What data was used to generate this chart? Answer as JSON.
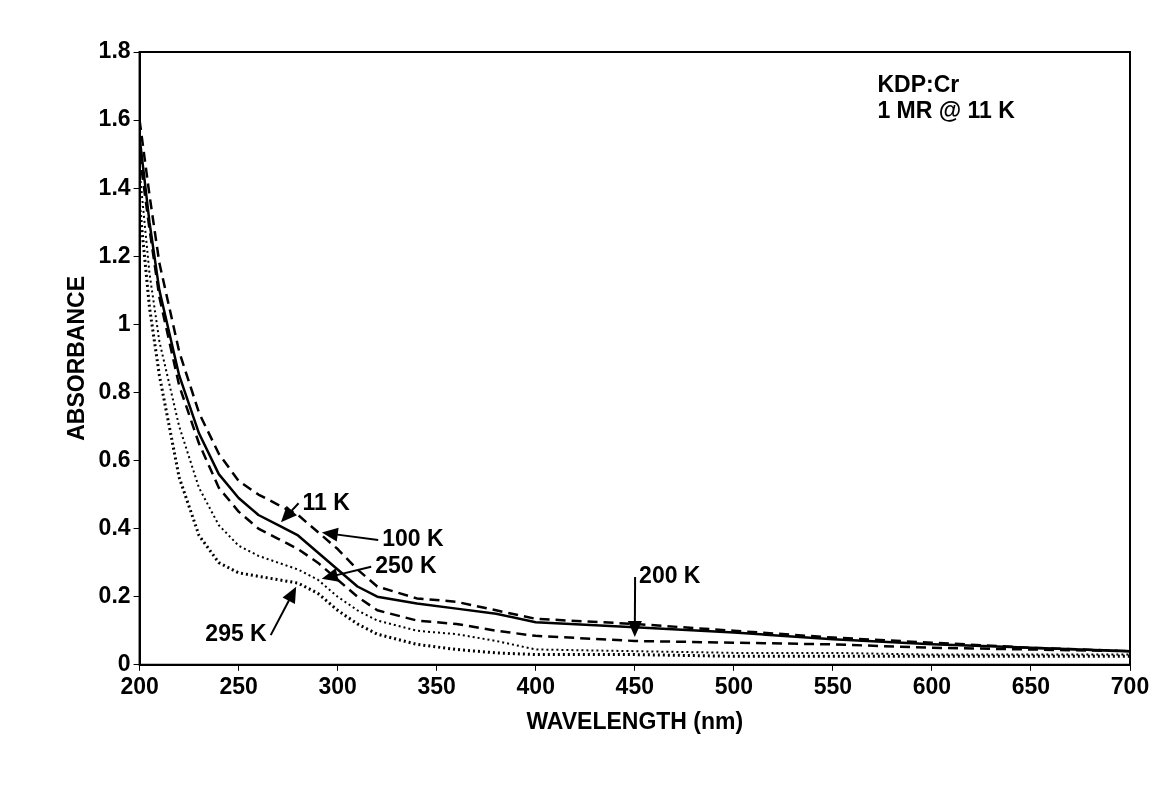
{
  "chart_data": {
    "type": "line",
    "xlabel": "WAVELENGTH (nm)",
    "ylabel": "ABSORBANCE",
    "x": [
      200,
      205,
      210,
      220,
      230,
      240,
      250,
      260,
      270,
      280,
      290,
      300,
      310,
      320,
      340,
      360,
      380,
      400,
      450,
      500,
      550,
      600,
      650,
      700
    ],
    "series": [
      {
        "color": "#000000",
        "line_style": "solid",
        "values": [
          1.55,
          1.3,
          1.1,
          0.85,
          0.68,
          0.56,
          0.49,
          0.44,
          0.41,
          0.38,
          0.33,
          0.28,
          0.23,
          0.2,
          0.18,
          0.165,
          0.15,
          0.125,
          0.11,
          0.095,
          0.075,
          0.06,
          0.05,
          0.04
        ]
      },
      {
        "color": "#000000",
        "line_style": "dashed",
        "values": [
          1.6,
          1.38,
          1.18,
          0.92,
          0.74,
          0.62,
          0.54,
          0.5,
          0.47,
          0.44,
          0.39,
          0.34,
          0.28,
          0.23,
          0.195,
          0.185,
          0.16,
          0.135,
          0.12,
          0.1,
          0.08,
          0.065,
          0.05,
          0.04
        ]
      },
      {
        "color": "#000000",
        "line_style": "dashed",
        "values": [
          1.5,
          1.28,
          1.08,
          0.82,
          0.65,
          0.52,
          0.45,
          0.4,
          0.37,
          0.34,
          0.3,
          0.25,
          0.2,
          0.16,
          0.13,
          0.12,
          0.1,
          0.085,
          0.07,
          0.065,
          0.06,
          0.05,
          0.045,
          0.04
        ]
      },
      {
        "color": "#000000",
        "line_style": "dotted",
        "values": [
          1.45,
          1.15,
          0.95,
          0.7,
          0.52,
          0.41,
          0.35,
          0.32,
          0.3,
          0.28,
          0.25,
          0.2,
          0.16,
          0.13,
          0.1,
          0.09,
          0.07,
          0.045,
          0.04,
          0.035,
          0.035,
          0.03,
          0.03,
          0.03
        ]
      },
      {
        "color": "#000000",
        "line_style": "dotted",
        "values": [
          1.35,
          1.05,
          0.85,
          0.55,
          0.38,
          0.3,
          0.27,
          0.26,
          0.25,
          0.24,
          0.21,
          0.16,
          0.12,
          0.09,
          0.06,
          0.045,
          0.035,
          0.03,
          0.03,
          0.025,
          0.025,
          0.025,
          0.025,
          0.025
        ]
      }
    ],
    "xlim": [
      200,
      700
    ],
    "xticks": [
      200,
      250,
      300,
      350,
      400,
      450,
      500,
      550,
      600,
      650,
      700
    ],
    "ylim": [
      0,
      1.8
    ],
    "yticks": [
      0,
      0.2,
      0.4,
      0.6,
      0.8,
      1,
      1.2,
      1.4,
      1.6,
      1.8
    ],
    "annotations": [
      "KDP:Cr",
      "1 MR @ 11 K",
      {
        "text": "11 K",
        "x": 270,
        "y": 0.41
      },
      {
        "text": "100 K",
        "x": 290,
        "y": 0.39
      },
      {
        "text": "200 K",
        "x": 450,
        "y": 0.07
      },
      {
        "text": "250 K",
        "x": 290,
        "y": 0.25
      },
      {
        "text": "295 K",
        "x": 280,
        "y": 0.24
      }
    ],
    "grid": false,
    "legend": false,
    "marker": "none"
  }
}
